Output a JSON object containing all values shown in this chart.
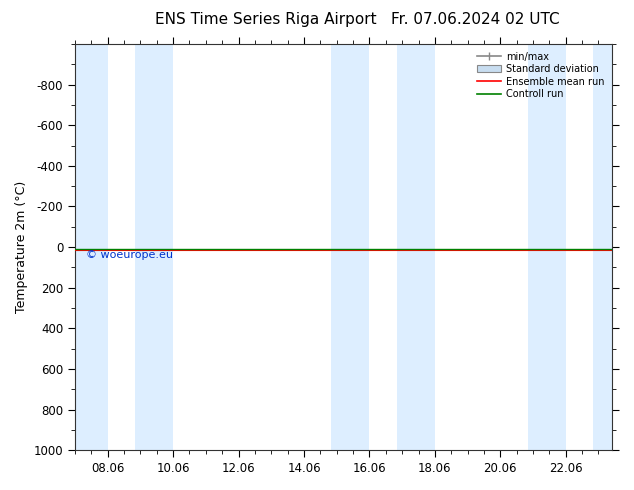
{
  "title_left": "ENS Time Series Riga Airport",
  "title_right": "Fr. 07.06.2024 02 UTC",
  "ylabel": "Temperature 2m (°C)",
  "ylim_bottom": 1000,
  "ylim_top": -1000,
  "yticks": [
    -800,
    -600,
    -400,
    -200,
    0,
    200,
    400,
    600,
    800,
    1000
  ],
  "xtick_labels": [
    "08.06",
    "10.06",
    "12.06",
    "14.06",
    "16.06",
    "18.06",
    "20.06",
    "22.06"
  ],
  "xtick_positions": [
    1.0,
    3.0,
    5.0,
    7.0,
    9.0,
    11.0,
    13.0,
    15.0
  ],
  "x_min": 0.0,
  "x_max": 16.416,
  "night_bands": [
    [
      0.0,
      1.0
    ],
    [
      1.833,
      3.0
    ],
    [
      7.833,
      9.0
    ],
    [
      9.833,
      11.0
    ],
    [
      13.833,
      15.0
    ],
    [
      15.833,
      16.416
    ]
  ],
  "control_run_y": 0,
  "ensemble_mean_y": 0,
  "watermark": "© woeurope.eu",
  "legend_items": [
    "min/max",
    "Standard deviation",
    "Ensemble mean run",
    "Controll run"
  ],
  "bg_color": "#ffffff",
  "band_color": "#ddeeff",
  "title_fontsize": 11,
  "label_fontsize": 9,
  "tick_fontsize": 8.5
}
